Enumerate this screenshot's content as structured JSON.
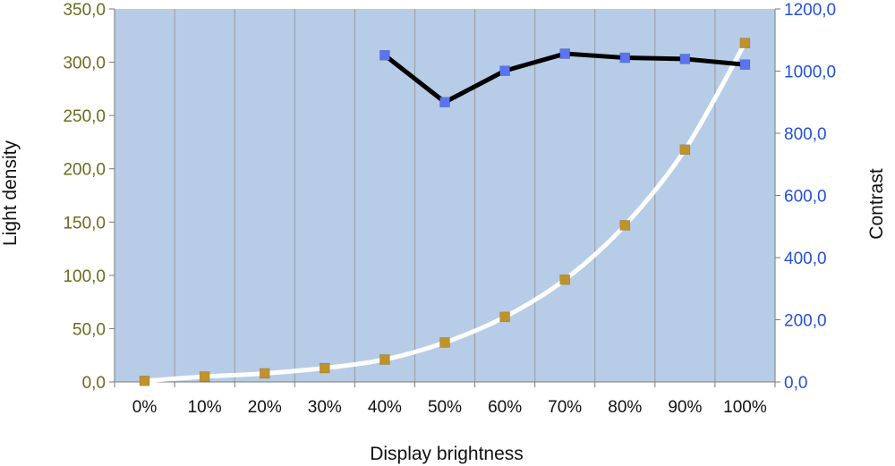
{
  "chart_data": {
    "type": "line",
    "xlabel": "Display brightness",
    "ylabel_left": "Light density",
    "ylabel_right": "Contrast",
    "categories": [
      "0%",
      "10%",
      "20%",
      "30%",
      "40%",
      "50%",
      "60%",
      "70%",
      "80%",
      "90%",
      "100%"
    ],
    "y_left": {
      "range": [
        0,
        350
      ],
      "ticks": [
        "0,0",
        "50,0",
        "100,0",
        "150,0",
        "200,0",
        "250,0",
        "300,0",
        "350,0"
      ],
      "tick_values": [
        0,
        50,
        100,
        150,
        200,
        250,
        300,
        350
      ]
    },
    "y_right": {
      "range": [
        0,
        1200
      ],
      "ticks": [
        "0,0",
        "200,0",
        "400,0",
        "600,0",
        "800,0",
        "1000,0",
        "1200,0"
      ],
      "tick_values": [
        0,
        200,
        400,
        600,
        800,
        1000,
        1200
      ]
    },
    "series": [
      {
        "axis": "left",
        "values": [
          1,
          5,
          8,
          13,
          21,
          37,
          61,
          96,
          147,
          218,
          318
        ],
        "line_color": "#ffffff",
        "marker_color": "#c0922a"
      },
      {
        "axis": "right",
        "values": [
          null,
          null,
          null,
          null,
          1051,
          900,
          1001,
          1056,
          1043,
          1039,
          1021
        ],
        "line_color": "#000000",
        "marker_color": "#5a74f0"
      }
    ],
    "grid": "vertical",
    "plot_background": "#b7cce6",
    "left_tick_color": "#6b6b1f",
    "right_tick_color": "#2550d8"
  }
}
